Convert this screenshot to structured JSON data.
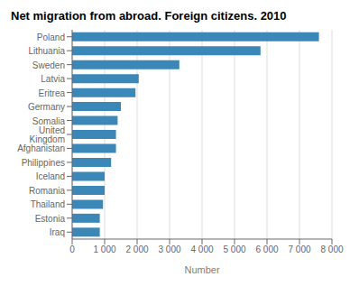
{
  "chart_data": {
    "type": "bar",
    "orientation": "horizontal",
    "title": "Net migration from abroad. Foreign citizens. 2010",
    "categories": [
      "Poland",
      "Lithuania",
      "Sweden",
      "Latvia",
      "Eritrea",
      "Germany",
      "Somalia",
      "United\nKingdom",
      "Afghanistan",
      "Philippines",
      "Iceland",
      "Romania",
      "Thailand",
      "Estonia",
      "Iraq"
    ],
    "values": [
      7600,
      5800,
      3300,
      2050,
      1950,
      1500,
      1400,
      1350,
      1350,
      1200,
      1000,
      1000,
      950,
      850,
      850
    ],
    "color": "#3a87b8",
    "xlabel": "Number",
    "xlim": [
      0,
      8000
    ],
    "xticks": [
      0,
      {
        "value": 1000,
        "label": "1 000"
      },
      {
        "value": 2000,
        "label": "2 000"
      },
      {
        "value": 3000,
        "label": "3 000"
      },
      {
        "value": 4000,
        "label": "4 000"
      },
      {
        "value": 5000,
        "label": "5 000"
      },
      {
        "value": 6000,
        "label": "6 000"
      },
      {
        "value": 7000,
        "label": "7 000"
      },
      {
        "value": 8000,
        "label": "8 000"
      }
    ],
    "grid": true
  }
}
